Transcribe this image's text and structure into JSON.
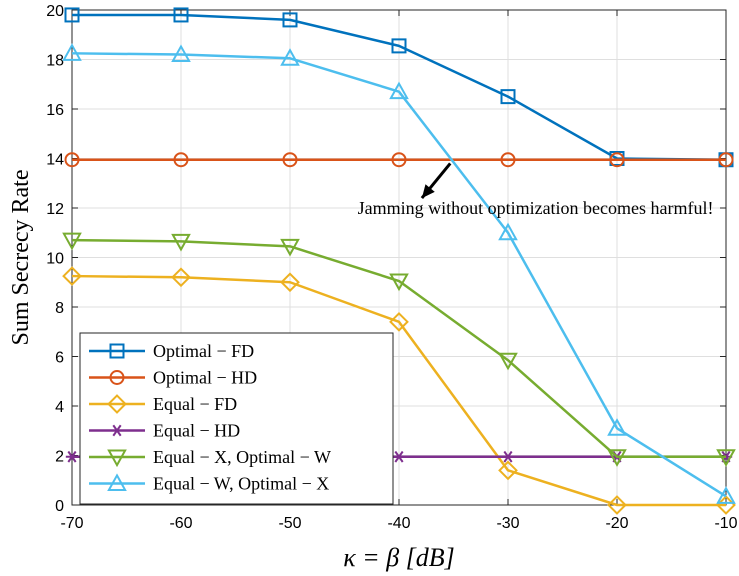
{
  "chart_data": {
    "type": "line",
    "title": "",
    "xlabel": "κ = β [dB]",
    "ylabel": "Sum Secrecy Rate",
    "x": [
      -70,
      -60,
      -50,
      -40,
      -30,
      -20,
      -10
    ],
    "xlim": [
      -70,
      -10
    ],
    "ylim": [
      0,
      20
    ],
    "xticks": [
      -70,
      -60,
      -50,
      -40,
      -30,
      -20,
      -10
    ],
    "yticks": [
      0,
      2,
      4,
      6,
      8,
      10,
      12,
      14,
      16,
      18,
      20
    ],
    "grid": true,
    "legend_position": "bottom-left",
    "series": [
      {
        "name": "Optimal − FD",
        "color": "#0072BD",
        "marker": "square",
        "values": [
          19.8,
          19.8,
          19.6,
          18.55,
          16.5,
          14.0,
          13.95
        ]
      },
      {
        "name": "Optimal − HD",
        "color": "#D95319",
        "marker": "circle",
        "values": [
          13.95,
          13.95,
          13.95,
          13.95,
          13.95,
          13.95,
          13.95
        ]
      },
      {
        "name": "Equal − FD",
        "color": "#EDB120",
        "marker": "diamond",
        "values": [
          9.25,
          9.2,
          9.0,
          7.4,
          1.4,
          0.0,
          0.0
        ]
      },
      {
        "name": "Equal − HD",
        "color": "#7E2F8E",
        "marker": "asterisk",
        "values": [
          1.95,
          1.95,
          1.95,
          1.95,
          1.95,
          1.95,
          1.95
        ]
      },
      {
        "name": "Equal − X, Optimal − W",
        "color": "#77AC30",
        "marker": "triangle-down",
        "values": [
          10.7,
          10.65,
          10.45,
          9.05,
          5.85,
          1.95,
          1.95
        ]
      },
      {
        "name": "Equal − W, Optimal − X",
        "color": "#4DBEEE",
        "marker": "triangle-up",
        "values": [
          18.25,
          18.2,
          18.05,
          16.7,
          11.0,
          3.1,
          0.35
        ]
      }
    ],
    "annotations": [
      {
        "text": "Jamming without optimization becomes harmful!",
        "x": -43.8,
        "y": 12.0,
        "arrow_from": [
          -35.3,
          13.8
        ],
        "arrow_to": [
          -37.9,
          12.4
        ]
      }
    ]
  }
}
